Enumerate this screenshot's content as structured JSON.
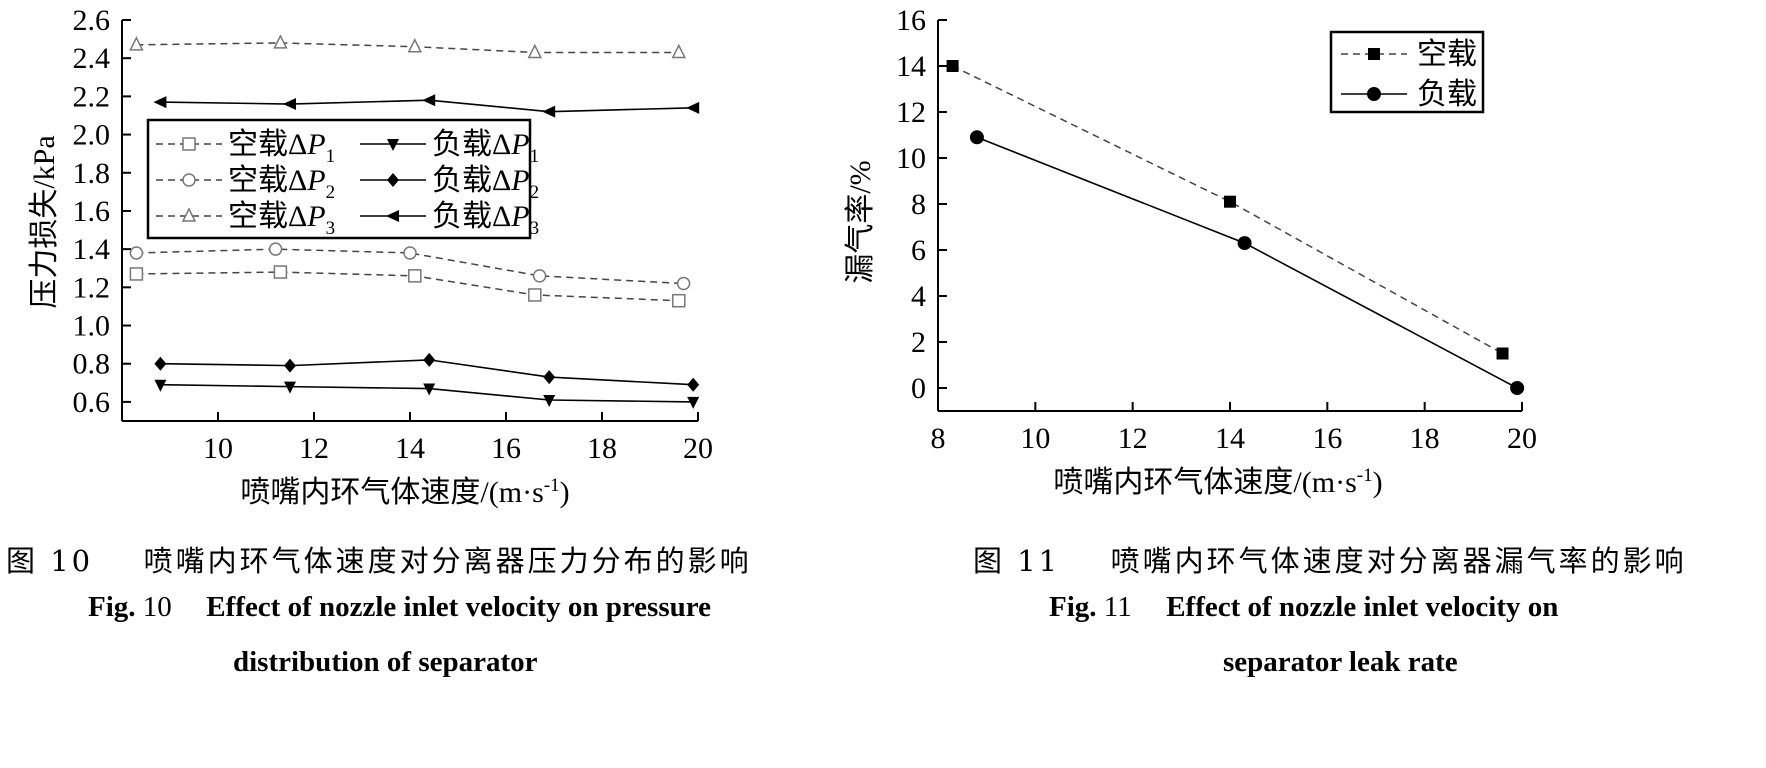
{
  "captions": {
    "fig10": {
      "cn_label": "图 10",
      "cn_text": "喷嘴内环气体速度对分离器压力分布的影响",
      "en_label": "Fig.",
      "en_num": "10",
      "en_line1": "Effect of nozzle inlet velocity on pressure",
      "en_line2": "distribution of separator"
    },
    "fig11": {
      "cn_label": "图 11",
      "cn_text": "喷嘴内环气体速度对分离器漏气率的影响",
      "en_label": "Fig.",
      "en_num": "11",
      "en_line1": "Effect of nozzle inlet velocity on",
      "en_line2": "separator leak rate"
    }
  },
  "chart_data": [
    {
      "type": "line",
      "xlabel": "喷嘴内环气体速度/(m·s",
      "xlabel_sup": "-1",
      "xlabel_tail": ")",
      "ylabel": "压力损失/kPa",
      "xlim": [
        8,
        20
      ],
      "ylim": [
        0.5,
        2.6
      ],
      "xticks": [
        10,
        12,
        14,
        16,
        18,
        20
      ],
      "yticks": [
        0.6,
        0.8,
        1.0,
        1.2,
        1.4,
        1.6,
        1.8,
        2.0,
        2.2,
        2.4,
        2.6
      ],
      "ytick_labels": [
        "0.6",
        "0.8",
        "1.0",
        "1.2",
        "1.4",
        "1.6",
        "1.8",
        "2.0",
        "2.2",
        "2.4",
        "2.6"
      ],
      "legend_position": "middle-left",
      "grid": false,
      "series": [
        {
          "name": "空载ΔP1",
          "prefix": "空载Δ",
          "var": "P",
          "sub": "1",
          "style": "dashed",
          "marker": "open-square",
          "x": [
            8.3,
            11.3,
            14.1,
            16.6,
            19.6
          ],
          "y": [
            1.27,
            1.28,
            1.26,
            1.16,
            1.13
          ]
        },
        {
          "name": "空载ΔP2",
          "prefix": "空载Δ",
          "var": "P",
          "sub": "2",
          "style": "dashed",
          "marker": "open-circle",
          "x": [
            8.3,
            11.2,
            14.0,
            16.7,
            19.7
          ],
          "y": [
            1.38,
            1.4,
            1.38,
            1.26,
            1.22
          ]
        },
        {
          "name": "空载ΔP3",
          "prefix": "空载Δ",
          "var": "P",
          "sub": "3",
          "style": "dashed",
          "marker": "open-triangle",
          "x": [
            8.3,
            11.3,
            14.1,
            16.6,
            19.6
          ],
          "y": [
            2.47,
            2.48,
            2.46,
            2.43,
            2.43
          ]
        },
        {
          "name": "负载ΔP1",
          "prefix": "负载Δ",
          "var": "P",
          "sub": "1",
          "style": "solid",
          "marker": "filled-triangle-down",
          "x": [
            8.8,
            11.5,
            14.4,
            16.9,
            19.9
          ],
          "y": [
            0.69,
            0.68,
            0.67,
            0.61,
            0.6
          ]
        },
        {
          "name": "负载ΔP2",
          "prefix": "负载Δ",
          "var": "P",
          "sub": "2",
          "style": "solid",
          "marker": "filled-diamond",
          "x": [
            8.8,
            11.5,
            14.4,
            16.9,
            19.9
          ],
          "y": [
            0.8,
            0.79,
            0.82,
            0.73,
            0.69
          ]
        },
        {
          "name": "负载ΔP3",
          "prefix": "负载Δ",
          "var": "P",
          "sub": "3",
          "style": "solid",
          "marker": "filled-triangle-left",
          "x": [
            8.8,
            11.5,
            14.4,
            16.9,
            19.9
          ],
          "y": [
            2.17,
            2.16,
            2.18,
            2.12,
            2.14
          ]
        }
      ]
    },
    {
      "type": "line",
      "xlabel": "喷嘴内环气体速度/(m·s",
      "xlabel_sup": "-1",
      "xlabel_tail": ")",
      "ylabel": "漏气率/%",
      "xlim": [
        8,
        20
      ],
      "ylim": [
        -1,
        16
      ],
      "xticks": [
        8,
        10,
        12,
        14,
        16,
        18,
        20
      ],
      "yticks": [
        0,
        2,
        4,
        6,
        8,
        10,
        12,
        14,
        16
      ],
      "ytick_labels": [
        "0",
        "2",
        "4",
        "6",
        "8",
        "10",
        "12",
        "14",
        "16"
      ],
      "legend_position": "top-right",
      "grid": false,
      "series": [
        {
          "name": "空载",
          "style": "dashed",
          "marker": "filled-square",
          "x": [
            8.3,
            14.0,
            19.6
          ],
          "y": [
            14.0,
            8.1,
            1.5
          ]
        },
        {
          "name": "负载",
          "style": "solid",
          "marker": "filled-circle",
          "x": [
            8.8,
            14.3,
            19.9
          ],
          "y": [
            10.9,
            6.3,
            0.0
          ]
        }
      ]
    }
  ]
}
